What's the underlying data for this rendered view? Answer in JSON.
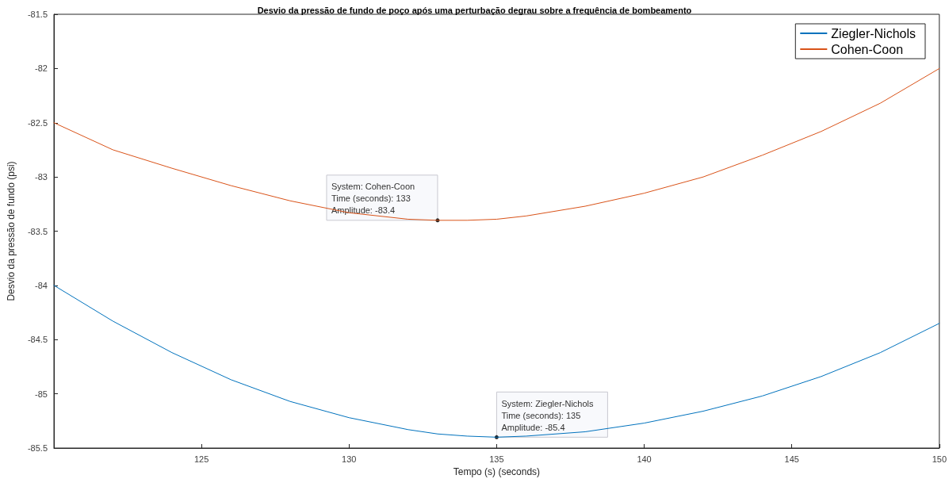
{
  "chart_data": {
    "type": "line",
    "title": "Desvio da pressão de fundo de poço após uma perturbação degrau sobre a frequência de bombeamento",
    "xlabel": "Tempo (s) (seconds)",
    "ylabel": "Desvio da pressão de fundo (psi)",
    "x": [
      120,
      122,
      124,
      126,
      128,
      130,
      132,
      133,
      134,
      135,
      136,
      138,
      140,
      142,
      144,
      146,
      148,
      150
    ],
    "series": [
      {
        "name": "Ziegler-Nichols",
        "color": "#0072bd",
        "values": [
          -84.0,
          -84.33,
          -84.62,
          -84.87,
          -85.07,
          -85.22,
          -85.33,
          -85.37,
          -85.39,
          -85.4,
          -85.39,
          -85.35,
          -85.27,
          -85.16,
          -85.02,
          -84.84,
          -84.62,
          -84.35
        ]
      },
      {
        "name": "Cohen-Coon",
        "color": "#d95319",
        "values": [
          -82.5,
          -82.75,
          -82.92,
          -83.08,
          -83.22,
          -83.33,
          -83.39,
          -83.4,
          -83.4,
          -83.39,
          -83.36,
          -83.27,
          -83.15,
          -83.0,
          -82.8,
          -82.58,
          -82.32,
          -82.0
        ]
      }
    ],
    "xlim": [
      120,
      150
    ],
    "xticks": [
      125,
      130,
      135,
      140,
      145,
      150
    ],
    "ylim": [
      -85.5,
      -81.5
    ],
    "yticks": [
      -85.5,
      -85,
      -84.5,
      -84,
      -83.5,
      -83,
      -82.5,
      -82,
      -81.5
    ],
    "annotations": [
      {
        "text": "System: Cohen-Coon\nTime (seconds): 133\nAmplitude: -83.4",
        "x": 133,
        "y": -83.4
      },
      {
        "text": "System: Ziegler-Nichols\nTime (seconds): 135\nAmplitude: -85.4",
        "x": 135,
        "y": -85.4
      }
    ],
    "grid": false,
    "legend": "top right",
    "marker": "none",
    "line_style": "solid"
  }
}
